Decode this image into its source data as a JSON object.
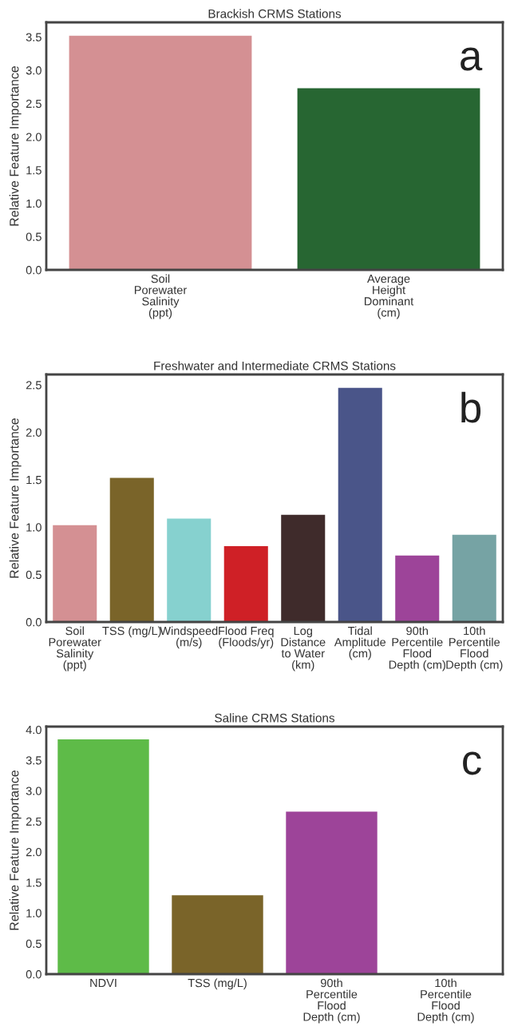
{
  "chart_data": [
    {
      "type": "bar",
      "title": "Brackish CRMS Stations",
      "ylabel": "Relative Feature Importance",
      "annotations": [
        "a"
      ],
      "categories": [
        "Soil\nPorewater\nSalinity\n(ppt)",
        "Average\nHeight\nDominant\n(cm)"
      ],
      "values": [
        3.52,
        2.73
      ],
      "colors": [
        "#d49093",
        "#276632"
      ],
      "ylim": [
        0,
        3.72
      ],
      "yticks": [
        {
          "value": 0,
          "label": "0.0"
        },
        {
          "value": 0.5,
          "label": "0.5"
        },
        {
          "value": 1,
          "label": "1.0"
        },
        {
          "value": 1.5,
          "label": "1.5"
        },
        {
          "value": 2,
          "label": "2.0"
        },
        {
          "value": 2.5,
          "label": "2.5"
        },
        {
          "value": 3,
          "label": "3.0"
        },
        {
          "value": 3.5,
          "label": "3.5"
        }
      ]
    },
    {
      "type": "bar",
      "title": "Freshwater and Intermediate CRMS Stations",
      "ylabel": "Relative Feature Importance",
      "annotations": [
        "b"
      ],
      "categories": [
        "Soil\nPorewater\nSalinity\n(ppt)",
        "TSS (mg/L)",
        "Windspeed\n(m/s)",
        "Flood Freq\n(Floods/yr)",
        "Log\nDistance\nto Water\n(km)",
        "Tidal\nAmplitude\n(cm)",
        "90th\nPercentile\nFlood\nDepth (cm)",
        "10th\nPercentile\nFlood\nDepth (cm)"
      ],
      "values": [
        1.02,
        1.52,
        1.09,
        0.8,
        1.13,
        2.47,
        0.7,
        0.92
      ],
      "colors": [
        "#d49093",
        "#7a6429",
        "#86d1cf",
        "#cf2026",
        "#3f2b2b",
        "#4a5589",
        "#9d4499",
        "#76a3a4"
      ],
      "ylim": [
        0,
        2.61
      ],
      "yticks": [
        {
          "value": 0,
          "label": "0.0"
        },
        {
          "value": 0.5,
          "label": "0.5"
        },
        {
          "value": 1,
          "label": "1.0"
        },
        {
          "value": 1.5,
          "label": "1.5"
        },
        {
          "value": 2,
          "label": "2.0"
        },
        {
          "value": 2.5,
          "label": "2.5"
        }
      ]
    },
    {
      "type": "bar",
      "title": "Saline CRMS Stations",
      "ylabel": "Relative Feature Importance",
      "annotations": [
        "c"
      ],
      "categories": [
        "NDVI",
        "TSS (mg/L)",
        "90th\nPercentile\nFlood\nDepth (cm)",
        "10th\nPercentile\nFlood\nDepth (cm)"
      ],
      "values": [
        3.84,
        1.29,
        2.66,
        0
      ],
      "colors": [
        "#5ebb48",
        "#7a6429",
        "#9d4499",
        "#76a3a4"
      ],
      "ylim": [
        0,
        4.05
      ],
      "yticks": [
        {
          "value": 0,
          "label": "0.0"
        },
        {
          "value": 0.5,
          "label": "0.5"
        },
        {
          "value": 1,
          "label": "1.0"
        },
        {
          "value": 1.5,
          "label": "1.5"
        },
        {
          "value": 2,
          "label": "2.0"
        },
        {
          "value": 2.5,
          "label": "2.5"
        },
        {
          "value": 3,
          "label": "3.0"
        },
        {
          "value": 3.5,
          "label": "3.5"
        },
        {
          "value": 4,
          "label": "4.0"
        }
      ]
    }
  ]
}
